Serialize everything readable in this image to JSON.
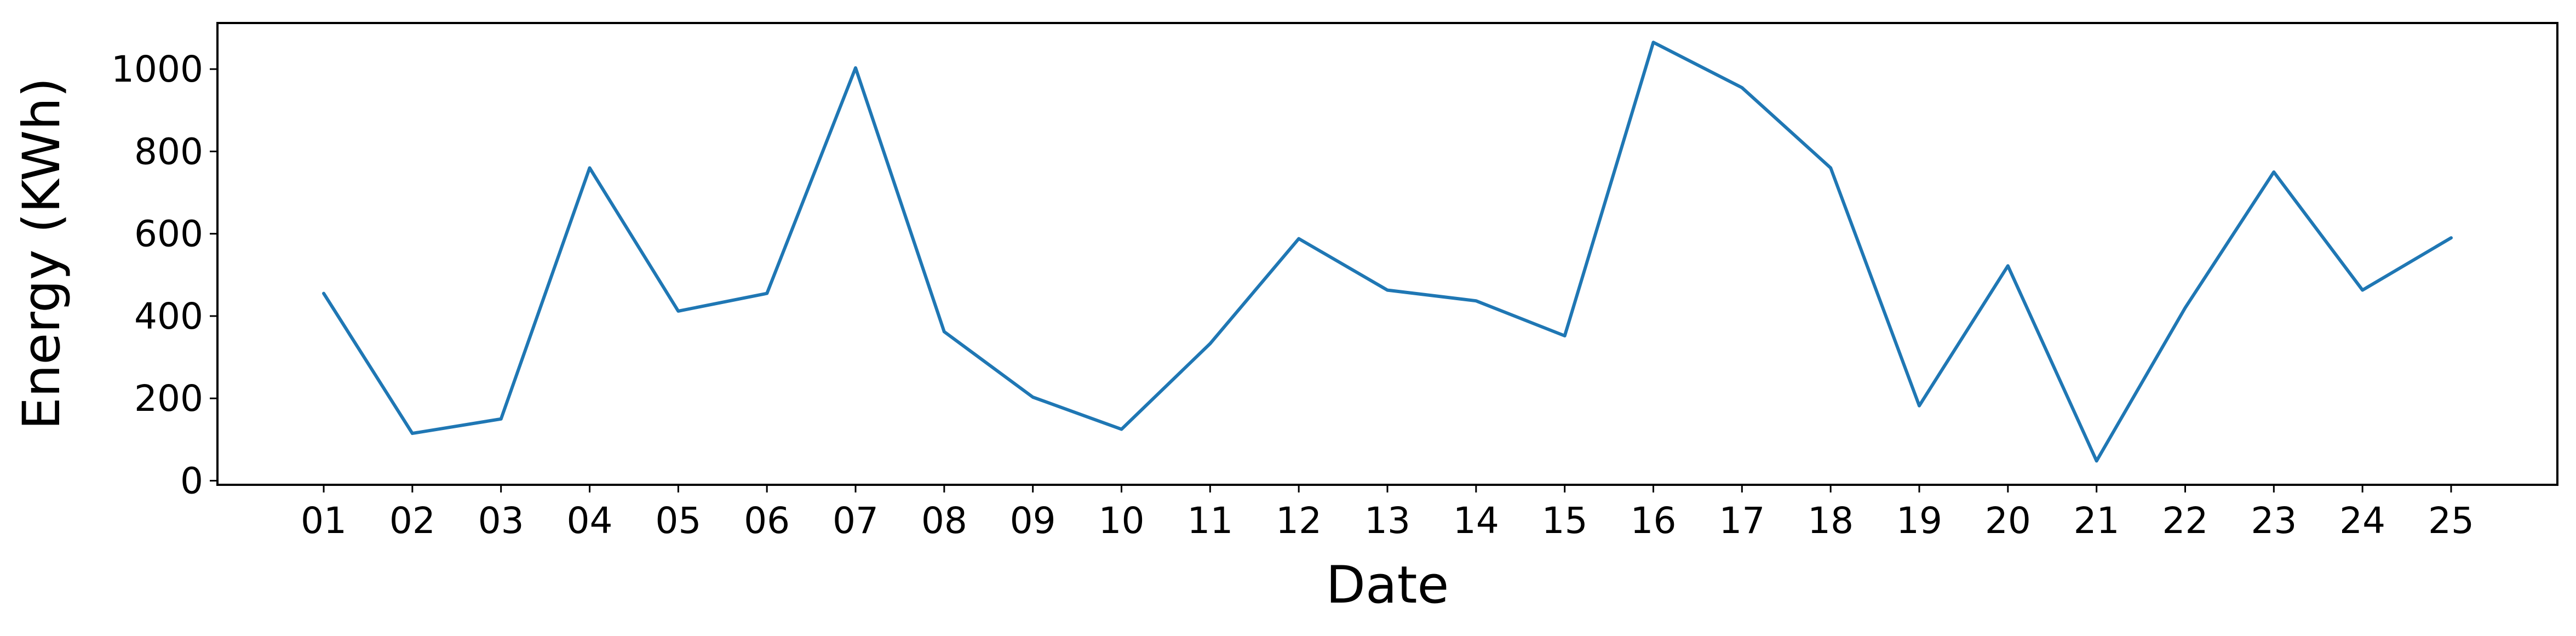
{
  "chart_data": {
    "type": "line",
    "title": "",
    "xlabel": "Date",
    "ylabel": "Energy (KWh)",
    "categories": [
      "01",
      "02",
      "03",
      "04",
      "05",
      "06",
      "07",
      "08",
      "09",
      "10",
      "11",
      "12",
      "13",
      "14",
      "15",
      "16",
      "17",
      "18",
      "19",
      "20",
      "21",
      "22",
      "23",
      "24",
      "25"
    ],
    "series": [
      {
        "values": [
          455,
          115,
          150,
          760,
          412,
          455,
          1003,
          362,
          203,
          125,
          333,
          588,
          463,
          437,
          352,
          1065,
          955,
          760,
          182,
          522,
          48,
          420,
          750,
          463,
          590
        ],
        "color": "#1f77b4"
      }
    ],
    "ylim": [
      -10,
      1112
    ],
    "yticks": [
      "0",
      "200",
      "400",
      "600",
      "800",
      "1000"
    ],
    "grid": false,
    "legend": "none"
  }
}
